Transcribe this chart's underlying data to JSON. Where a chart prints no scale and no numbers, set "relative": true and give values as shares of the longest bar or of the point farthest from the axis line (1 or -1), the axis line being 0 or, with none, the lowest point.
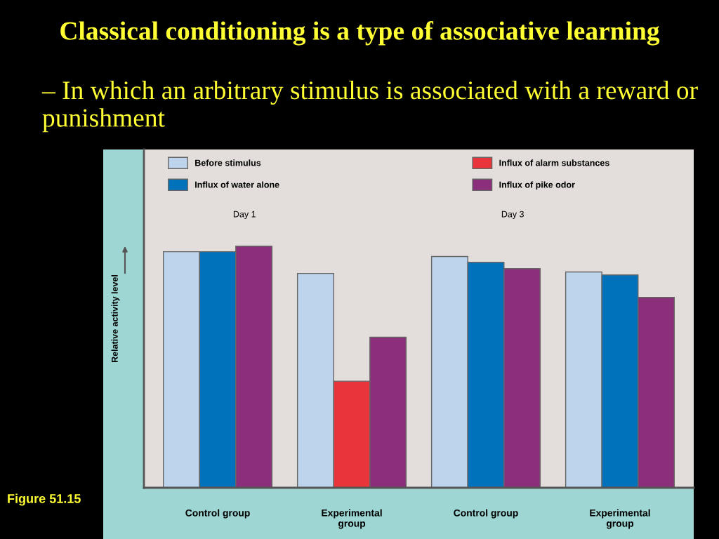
{
  "chart_data": {
    "type": "bar",
    "relative": true,
    "title": "Classical conditioning is a type of associative learning",
    "subtitle": "– In which an arbitrary stimulus is associated with a reward or punishment",
    "ylabel": "Relative activity level",
    "categories": [
      "Control group",
      "Experimental\ngroup",
      "Control group",
      "Experimental\ngroup"
    ],
    "series": [
      {
        "name": "Before stimulus",
        "color": "#bed3ec",
        "values": [
          0.977,
          0.887,
          0.957,
          0.893
        ]
      },
      {
        "name": "Influx of water alone",
        "color": "#0072bb",
        "values": [
          0.977,
          null,
          0.933,
          0.881
        ]
      },
      {
        "name": "Influx of alarm substances",
        "color": "#e8343a",
        "values": [
          null,
          0.441,
          null,
          null
        ]
      },
      {
        "name": "Influx of pike odor",
        "color": "#8c2f7b",
        "values": [
          1,
          0.623,
          0.907,
          0.788
        ]
      }
    ],
    "annotations": [
      "Day 1",
      "Day 3",
      "Figure 51.15"
    ],
    "legend": "top left",
    "grid": false
  }
}
